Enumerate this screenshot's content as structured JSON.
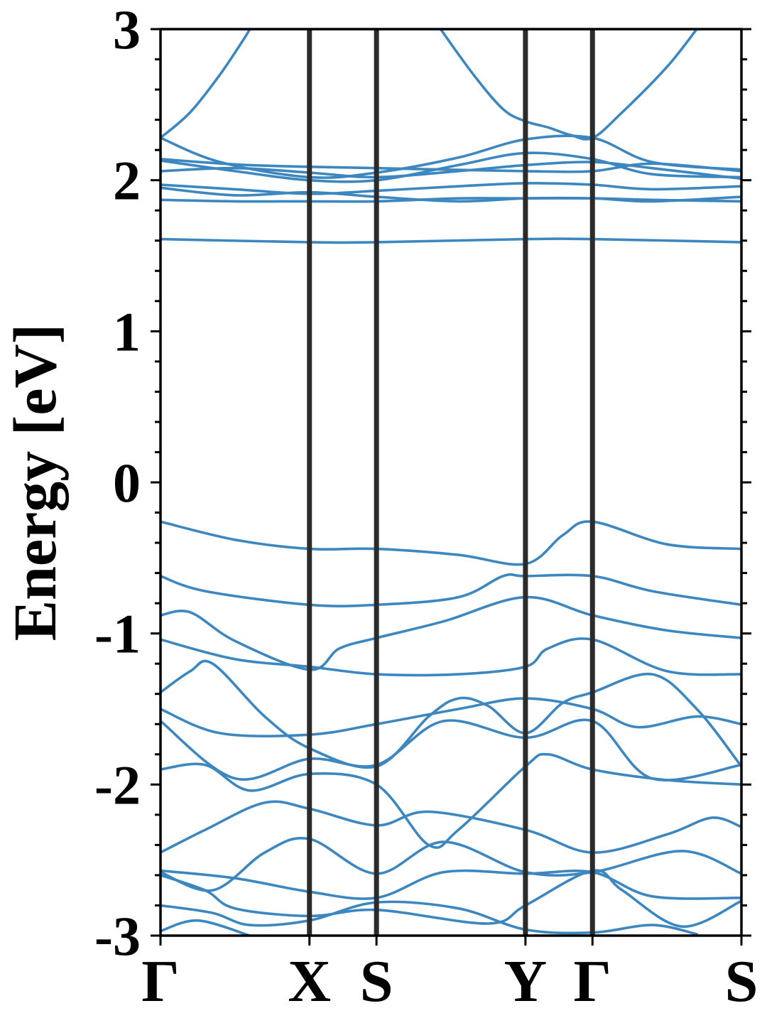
{
  "chart_data": {
    "type": "line",
    "title": "",
    "ylabel": "Energy [eV]",
    "xlabel": "",
    "ylim": [
      -3,
      3
    ],
    "y_ticks": [
      {
        "value": 3,
        "label": "3"
      },
      {
        "value": 2,
        "label": "2"
      },
      {
        "value": 1,
        "label": "1"
      },
      {
        "value": 0,
        "label": "0"
      },
      {
        "value": -1,
        "label": "-1"
      },
      {
        "value": -2,
        "label": "-2"
      },
      {
        "value": -3,
        "label": "-3"
      }
    ],
    "y_minor_step": 0.2,
    "grid": false,
    "legend": "none",
    "colors": {
      "band": "#3c87bf",
      "kpath_line": "#2b2b2b",
      "axis": "#000000"
    },
    "kpath": {
      "x_range": [
        0,
        3.9
      ],
      "points": [
        {
          "label": "Γ",
          "x": 0
        },
        {
          "label": "X",
          "x": 1.0
        },
        {
          "label": "S",
          "x": 1.45
        },
        {
          "label": "Y",
          "x": 2.45
        },
        {
          "label": "Γ",
          "x": 2.9
        },
        {
          "label": "S",
          "x": 3.9
        }
      ]
    },
    "series": [
      {
        "values": [
          [
            0,
            2.28
          ],
          [
            0.2,
            2.45
          ],
          [
            0.4,
            2.7
          ],
          [
            0.55,
            2.92
          ],
          [
            0.6,
            3.0
          ]
        ]
      },
      {
        "values": [
          [
            1.88,
            3.0
          ],
          [
            2.1,
            2.7
          ],
          [
            2.3,
            2.47
          ],
          [
            2.45,
            2.39
          ],
          [
            2.6,
            2.35
          ],
          [
            2.75,
            2.3
          ],
          [
            2.9,
            2.28
          ],
          [
            3.1,
            2.45
          ],
          [
            3.4,
            2.75
          ],
          [
            3.6,
            3.0
          ]
        ]
      },
      {
        "values": [
          [
            0,
            2.28
          ],
          [
            0.4,
            2.12
          ],
          [
            1.0,
            2.02
          ],
          [
            1.45,
            2.05
          ],
          [
            2.0,
            2.15
          ],
          [
            2.45,
            2.27
          ],
          [
            2.9,
            2.28
          ],
          [
            3.3,
            2.12
          ],
          [
            3.9,
            2.07
          ]
        ]
      },
      {
        "values": [
          [
            0,
            2.14
          ],
          [
            0.6,
            2.1
          ],
          [
            1.45,
            2.08
          ],
          [
            2.45,
            2.06
          ],
          [
            2.9,
            2.06
          ],
          [
            3.3,
            2.11
          ],
          [
            3.9,
            2.06
          ]
        ]
      },
      {
        "values": [
          [
            0,
            2.13
          ],
          [
            0.5,
            2.06
          ],
          [
            1.0,
            2.0
          ],
          [
            1.45,
            2.0
          ],
          [
            2.0,
            2.1
          ],
          [
            2.45,
            2.18
          ],
          [
            2.9,
            2.14
          ],
          [
            3.3,
            2.04
          ],
          [
            3.9,
            2.02
          ]
        ]
      },
      {
        "values": [
          [
            0,
            2.06
          ],
          [
            0.5,
            2.08
          ],
          [
            1.0,
            2.05
          ],
          [
            1.45,
            2.02
          ],
          [
            2.0,
            2.06
          ],
          [
            2.45,
            2.1
          ],
          [
            2.9,
            2.12
          ],
          [
            3.3,
            2.08
          ],
          [
            3.9,
            2.01
          ]
        ]
      },
      {
        "values": [
          [
            0,
            1.97
          ],
          [
            0.5,
            1.94
          ],
          [
            1.0,
            1.91
          ],
          [
            1.45,
            1.93
          ],
          [
            2.0,
            1.96
          ],
          [
            2.45,
            1.98
          ],
          [
            2.9,
            1.97
          ],
          [
            3.3,
            1.94
          ],
          [
            3.9,
            1.96
          ]
        ]
      },
      {
        "values": [
          [
            0,
            1.95
          ],
          [
            0.5,
            1.9
          ],
          [
            1.0,
            1.92
          ],
          [
            1.45,
            1.89
          ],
          [
            2.0,
            1.86
          ],
          [
            2.45,
            1.88
          ],
          [
            2.9,
            1.88
          ],
          [
            3.3,
            1.86
          ],
          [
            3.9,
            1.89
          ]
        ]
      },
      {
        "values": [
          [
            0,
            1.87
          ],
          [
            0.5,
            1.86
          ],
          [
            1.0,
            1.86
          ],
          [
            1.45,
            1.86
          ],
          [
            2.0,
            1.88
          ],
          [
            2.45,
            1.88
          ],
          [
            2.9,
            1.88
          ],
          [
            3.3,
            1.87
          ],
          [
            3.9,
            1.86
          ]
        ]
      },
      {
        "values": [
          [
            0,
            1.61
          ],
          [
            1.0,
            1.59
          ],
          [
            1.45,
            1.59
          ],
          [
            2.45,
            1.61
          ],
          [
            2.9,
            1.61
          ],
          [
            3.9,
            1.59
          ]
        ]
      },
      {
        "values": [
          [
            0,
            -0.26
          ],
          [
            0.5,
            -0.38
          ],
          [
            1.0,
            -0.44
          ],
          [
            1.45,
            -0.44
          ],
          [
            2.0,
            -0.48
          ],
          [
            2.45,
            -0.54
          ],
          [
            2.7,
            -0.35
          ],
          [
            2.9,
            -0.26
          ],
          [
            3.4,
            -0.41
          ],
          [
            3.9,
            -0.44
          ]
        ]
      },
      {
        "values": [
          [
            0,
            -0.62
          ],
          [
            0.3,
            -0.72
          ],
          [
            1.0,
            -0.81
          ],
          [
            1.45,
            -0.81
          ],
          [
            2.0,
            -0.76
          ],
          [
            2.3,
            -0.62
          ],
          [
            2.45,
            -0.62
          ],
          [
            2.9,
            -0.62
          ],
          [
            3.3,
            -0.72
          ],
          [
            3.9,
            -0.81
          ]
        ]
      },
      {
        "values": [
          [
            0,
            -0.88
          ],
          [
            0.2,
            -0.86
          ],
          [
            0.5,
            -1.05
          ],
          [
            1.0,
            -1.24
          ],
          [
            1.2,
            -1.1
          ],
          [
            1.45,
            -1.03
          ],
          [
            1.9,
            -0.92
          ],
          [
            2.45,
            -0.76
          ],
          [
            2.9,
            -0.88
          ],
          [
            3.4,
            -0.98
          ],
          [
            3.9,
            -1.03
          ]
        ]
      },
      {
        "values": [
          [
            0,
            -1.04
          ],
          [
            0.5,
            -1.17
          ],
          [
            1.0,
            -1.22
          ],
          [
            1.45,
            -1.27
          ],
          [
            2.0,
            -1.27
          ],
          [
            2.45,
            -1.22
          ],
          [
            2.6,
            -1.1
          ],
          [
            2.9,
            -1.04
          ],
          [
            3.4,
            -1.25
          ],
          [
            3.9,
            -1.27
          ]
        ]
      },
      {
        "values": [
          [
            0,
            -1.39
          ],
          [
            0.2,
            -1.25
          ],
          [
            0.35,
            -1.2
          ],
          [
            0.7,
            -1.55
          ],
          [
            1.0,
            -1.76
          ],
          [
            1.45,
            -1.88
          ],
          [
            1.8,
            -1.55
          ],
          [
            2.0,
            -1.43
          ],
          [
            2.2,
            -1.48
          ],
          [
            2.45,
            -1.66
          ],
          [
            2.7,
            -1.46
          ],
          [
            2.9,
            -1.39
          ],
          [
            3.3,
            -1.27
          ],
          [
            3.6,
            -1.5
          ],
          [
            3.9,
            -1.88
          ]
        ]
      },
      {
        "values": [
          [
            0,
            -1.5
          ],
          [
            0.4,
            -1.66
          ],
          [
            1.0,
            -1.67
          ],
          [
            1.45,
            -1.6
          ],
          [
            2.0,
            -1.5
          ],
          [
            2.45,
            -1.43
          ],
          [
            2.9,
            -1.5
          ],
          [
            3.2,
            -1.62
          ],
          [
            3.6,
            -1.55
          ],
          [
            3.9,
            -1.6
          ]
        ]
      },
      {
        "values": [
          [
            0,
            -1.58
          ],
          [
            0.5,
            -1.96
          ],
          [
            1.0,
            -1.83
          ],
          [
            1.45,
            -1.87
          ],
          [
            1.9,
            -1.58
          ],
          [
            2.45,
            -1.69
          ],
          [
            2.9,
            -1.58
          ],
          [
            3.3,
            -1.96
          ],
          [
            3.9,
            -1.87
          ]
        ]
      },
      {
        "values": [
          [
            0,
            -1.9
          ],
          [
            0.3,
            -1.87
          ],
          [
            0.6,
            -2.04
          ],
          [
            1.0,
            -1.93
          ],
          [
            1.45,
            -2.0
          ],
          [
            1.8,
            -2.4
          ],
          [
            2.0,
            -2.3
          ],
          [
            2.45,
            -1.88
          ],
          [
            2.6,
            -1.8
          ],
          [
            2.9,
            -1.9
          ],
          [
            3.4,
            -1.97
          ],
          [
            3.9,
            -2.0
          ]
        ]
      },
      {
        "values": [
          [
            0,
            -2.45
          ],
          [
            0.3,
            -2.3
          ],
          [
            0.7,
            -2.12
          ],
          [
            1.0,
            -2.16
          ],
          [
            1.45,
            -2.27
          ],
          [
            1.8,
            -2.18
          ],
          [
            2.45,
            -2.3
          ],
          [
            2.9,
            -2.45
          ],
          [
            3.4,
            -2.33
          ],
          [
            3.7,
            -2.22
          ],
          [
            3.9,
            -2.28
          ]
        ]
      },
      {
        "values": [
          [
            0,
            -2.58
          ],
          [
            0.35,
            -2.7
          ],
          [
            0.7,
            -2.45
          ],
          [
            1.0,
            -2.36
          ],
          [
            1.45,
            -2.59
          ],
          [
            1.9,
            -2.38
          ],
          [
            2.45,
            -2.58
          ],
          [
            2.9,
            -2.58
          ],
          [
            3.5,
            -2.44
          ],
          [
            3.9,
            -2.59
          ]
        ]
      },
      {
        "values": [
          [
            0,
            -2.57
          ],
          [
            0.5,
            -2.62
          ],
          [
            1.0,
            -2.71
          ],
          [
            1.45,
            -2.75
          ],
          [
            1.9,
            -2.58
          ],
          [
            2.45,
            -2.59
          ],
          [
            2.9,
            -2.58
          ],
          [
            3.3,
            -2.74
          ],
          [
            3.9,
            -2.75
          ]
        ]
      },
      {
        "values": [
          [
            0,
            -2.6
          ],
          [
            0.3,
            -2.7
          ],
          [
            0.5,
            -2.82
          ],
          [
            1.0,
            -2.87
          ],
          [
            1.45,
            -2.83
          ],
          [
            2.2,
            -2.92
          ],
          [
            2.45,
            -2.8
          ],
          [
            2.9,
            -2.57
          ],
          [
            3.1,
            -2.7
          ],
          [
            3.5,
            -2.94
          ],
          [
            3.9,
            -2.77
          ]
        ]
      },
      {
        "values": [
          [
            0,
            -2.97
          ],
          [
            0.25,
            -2.9
          ],
          [
            0.6,
            -3.0
          ]
        ]
      },
      {
        "values": [
          [
            0,
            -2.8
          ],
          [
            0.35,
            -2.85
          ],
          [
            0.6,
            -2.93
          ],
          [
            1.0,
            -2.9
          ],
          [
            1.45,
            -2.78
          ],
          [
            2.0,
            -2.82
          ],
          [
            2.45,
            -2.96
          ],
          [
            2.9,
            -2.98
          ],
          [
            3.3,
            -2.93
          ],
          [
            3.6,
            -2.99
          ]
        ]
      }
    ]
  }
}
